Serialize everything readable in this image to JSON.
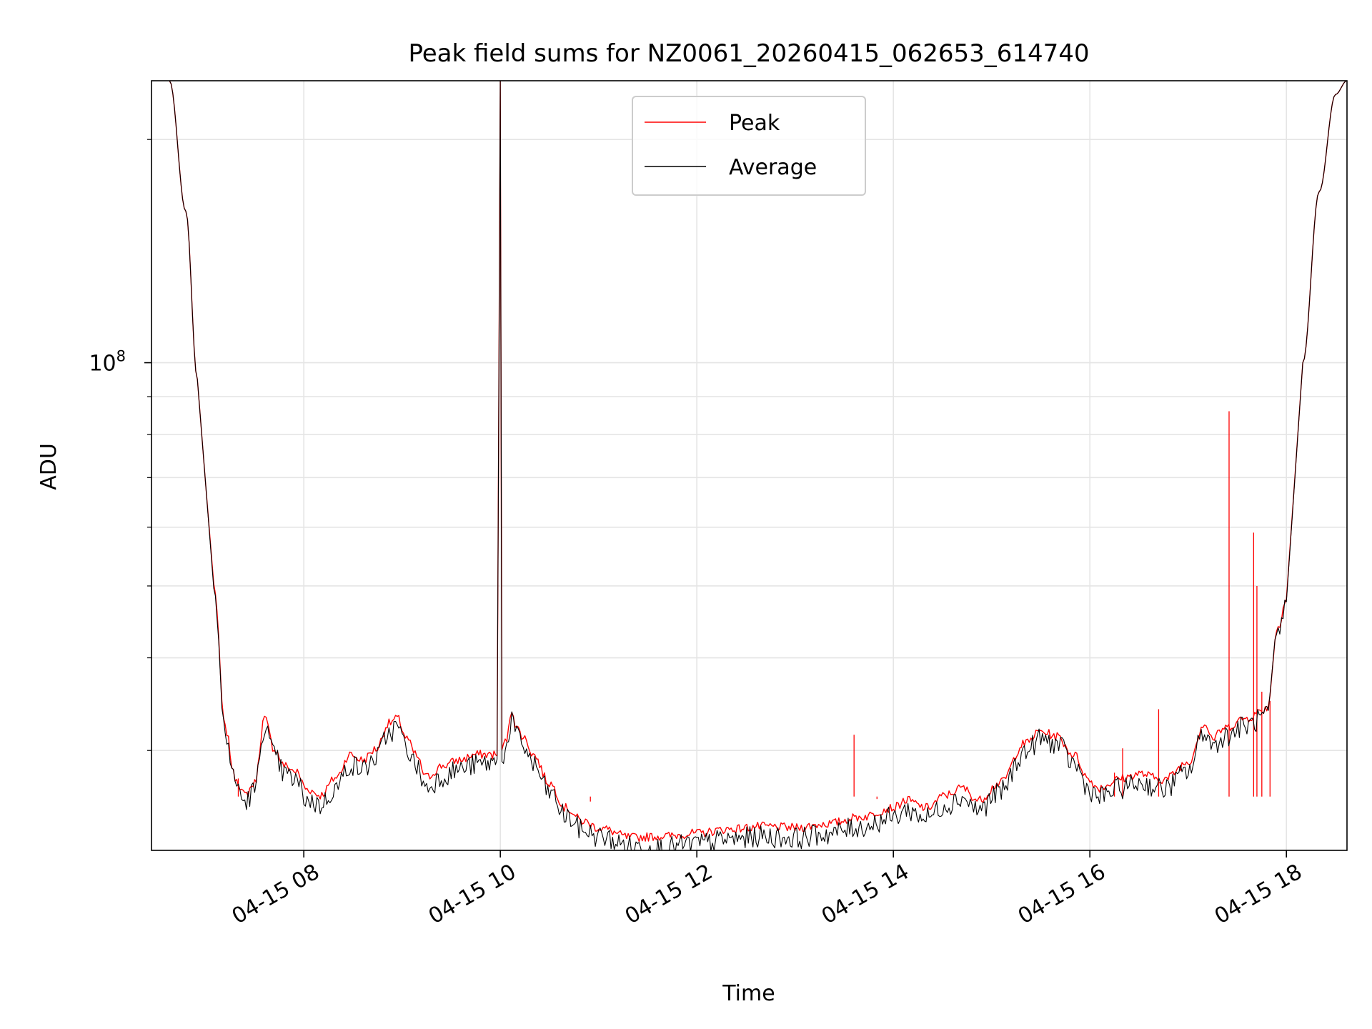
{
  "chart_data": {
    "type": "line",
    "title": "Peak field sums for NZ0061_20260415_062653_614740",
    "xlabel": "Time",
    "ylabel": "ADU",
    "x_scale": "time",
    "y_scale": "log",
    "xlim": [
      "04-15 06:27",
      "04-15 18:37"
    ],
    "ylim": [
      22000000,
      240000000
    ],
    "x_ticks": [
      {
        "value": "04-15 08:00",
        "label": "04-15 08"
      },
      {
        "value": "04-15 10:00",
        "label": "04-15 10"
      },
      {
        "value": "04-15 12:00",
        "label": "04-15 12"
      },
      {
        "value": "04-15 14:00",
        "label": "04-15 14"
      },
      {
        "value": "04-15 16:00",
        "label": "04-15 16"
      },
      {
        "value": "04-15 18:00",
        "label": "04-15 18"
      }
    ],
    "y_major_ticks": [
      {
        "value": 100000000,
        "base": "10",
        "exp": "8"
      }
    ],
    "y_minor_ticks": [
      30000000,
      40000000,
      50000000,
      60000000,
      70000000,
      80000000,
      90000000,
      200000000
    ],
    "grid": true,
    "legend": {
      "position": "top-center",
      "entries": [
        "Peak",
        "Average"
      ]
    },
    "series": [
      {
        "name": "Peak",
        "color": "#ff0000",
        "x": [
          "04-15 06:38",
          "04-15 06:48",
          "04-15 06:55",
          "04-15 07:05",
          "04-15 07:12",
          "04-15 07:18",
          "04-15 07:24",
          "04-15 07:30",
          "04-15 07:36",
          "04-15 07:42",
          "04-15 07:48",
          "04-15 07:55",
          "04-15 08:02",
          "04-15 08:10",
          "04-15 08:20",
          "04-15 08:28",
          "04-15 08:36",
          "04-15 08:44",
          "04-15 08:52",
          "04-15 08:57",
          "04-15 09:03",
          "04-15 09:08",
          "04-15 09:15",
          "04-15 09:25",
          "04-15 09:35",
          "04-15 09:45",
          "04-15 09:58",
          "04-15 10:00",
          "04-15 10:01",
          "04-15 10:04",
          "04-15 10:07",
          "04-15 10:10",
          "04-15 10:15",
          "04-15 10:20",
          "04-15 10:30",
          "04-15 10:40",
          "04-15 10:50",
          "04-15 11:00",
          "04-15 11:20",
          "04-15 11:40",
          "04-15 12:00",
          "04-15 12:20",
          "04-15 12:40",
          "04-15 13:00",
          "04-15 13:20",
          "04-15 13:40",
          "04-15 14:00",
          "04-15 14:08",
          "04-15 14:20",
          "04-15 14:32",
          "04-15 14:42",
          "04-15 14:52",
          "04-15 15:05",
          "04-15 15:20",
          "04-15 15:30",
          "04-15 15:40",
          "04-15 15:50",
          "04-15 16:00",
          "04-15 16:05",
          "04-15 16:20",
          "04-15 16:30",
          "04-15 16:45",
          "04-15 17:00",
          "04-15 17:10",
          "04-15 17:15",
          "04-15 17:22",
          "04-15 17:35",
          "04-15 17:48",
          "04-15 17:55",
          "04-15 18:00",
          "04-15 18:10",
          "04-15 18:20",
          "04-15 18:30",
          "04-15 18:37"
        ],
        "y": [
          240000000,
          160000000,
          95000000,
          50000000,
          32000000,
          27500000,
          26000000,
          27000000,
          33000000,
          30000000,
          28500000,
          28000000,
          26500000,
          26000000,
          27500000,
          29500000,
          29000000,
          30000000,
          32500000,
          33000000,
          31000000,
          29500000,
          27500000,
          28500000,
          29000000,
          29500000,
          29500000,
          240000000,
          30000000,
          31000000,
          34000000,
          32000000,
          31000000,
          29500000,
          27000000,
          25000000,
          24000000,
          23500000,
          22800000,
          22900000,
          23100000,
          23400000,
          23600000,
          23500000,
          23800000,
          24300000,
          25000000,
          25600000,
          25000000,
          26000000,
          26600000,
          25600000,
          27000000,
          30500000,
          31700000,
          31200000,
          29500000,
          27200000,
          26600000,
          27400000,
          27800000,
          27300000,
          28800000,
          32500000,
          31000000,
          32000000,
          33000000,
          34000000,
          44000000,
          48000000,
          100000000,
          170000000,
          230000000,
          240000000
        ]
      },
      {
        "name": "Average",
        "color": "#000000",
        "x": [
          "04-15 06:38",
          "04-15 06:48",
          "04-15 06:55",
          "04-15 07:05",
          "04-15 07:12",
          "04-15 07:18",
          "04-15 07:24",
          "04-15 07:30",
          "04-15 07:36",
          "04-15 07:42",
          "04-15 07:48",
          "04-15 07:55",
          "04-15 08:02",
          "04-15 08:10",
          "04-15 08:20",
          "04-15 08:28",
          "04-15 08:36",
          "04-15 08:44",
          "04-15 08:52",
          "04-15 08:57",
          "04-15 09:03",
          "04-15 09:08",
          "04-15 09:15",
          "04-15 09:25",
          "04-15 09:35",
          "04-15 09:45",
          "04-15 09:58",
          "04-15 10:00",
          "04-15 10:01",
          "04-15 10:04",
          "04-15 10:07",
          "04-15 10:10",
          "04-15 10:15",
          "04-15 10:20",
          "04-15 10:30",
          "04-15 10:40",
          "04-15 10:50",
          "04-15 11:00",
          "04-15 11:20",
          "04-15 11:40",
          "04-15 12:00",
          "04-15 12:20",
          "04-15 12:40",
          "04-15 13:00",
          "04-15 13:20",
          "04-15 13:40",
          "04-15 14:00",
          "04-15 14:08",
          "04-15 14:20",
          "04-15 14:32",
          "04-15 14:42",
          "04-15 14:52",
          "04-15 15:05",
          "04-15 15:20",
          "04-15 15:30",
          "04-15 15:40",
          "04-15 15:50",
          "04-15 16:00",
          "04-15 16:05",
          "04-15 16:20",
          "04-15 16:30",
          "04-15 16:45",
          "04-15 17:00",
          "04-15 17:10",
          "04-15 17:15",
          "04-15 17:22",
          "04-15 17:35",
          "04-15 17:48",
          "04-15 17:55",
          "04-15 18:00",
          "04-15 18:10",
          "04-15 18:20",
          "04-15 18:30",
          "04-15 18:37"
        ],
        "y": [
          240000000,
          160000000,
          95000000,
          50000000,
          32000000,
          27500000,
          25800000,
          26800000,
          32700000,
          29800000,
          28200000,
          27600000,
          26000000,
          25600000,
          27000000,
          29000000,
          28600000,
          29600000,
          32000000,
          32600000,
          30500000,
          29000000,
          27000000,
          28000000,
          28600000,
          29000000,
          29200000,
          240000000,
          29800000,
          30700000,
          33500000,
          31600000,
          30600000,
          29000000,
          26600000,
          24700000,
          23700000,
          23200000,
          22500000,
          22400000,
          22700000,
          23000000,
          23200000,
          23100000,
          23400000,
          23900000,
          24600000,
          25200000,
          24600000,
          25600000,
          26200000,
          25200000,
          26600000,
          30100000,
          31400000,
          30900000,
          29100000,
          26800000,
          26200000,
          27000000,
          27400000,
          26900000,
          28400000,
          32200000,
          30700000,
          31700000,
          32700000,
          33700000,
          43600000,
          47600000,
          100000000,
          170000000,
          230000000,
          240000000
        ]
      }
    ],
    "peak_spikes": [
      {
        "x": "04-15 07:20",
        "y": 27500000
      },
      {
        "x": "04-15 10:55",
        "y": 25600000
      },
      {
        "x": "04-15 13:36",
        "y": 31500000
      },
      {
        "x": "04-15 13:50",
        "y": 25800000
      },
      {
        "x": "04-15 16:15",
        "y": 28000000
      },
      {
        "x": "04-15 16:20",
        "y": 30200000
      },
      {
        "x": "04-15 16:42",
        "y": 34100000
      },
      {
        "x": "04-15 17:25",
        "y": 86000000
      },
      {
        "x": "04-15 17:40",
        "y": 59000000
      },
      {
        "x": "04-15 17:42",
        "y": 50000000
      },
      {
        "x": "04-15 17:45",
        "y": 36000000
      },
      {
        "x": "04-15 17:50",
        "y": 35000000
      }
    ]
  }
}
